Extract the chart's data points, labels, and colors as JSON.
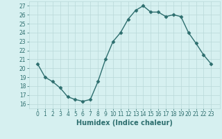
{
  "x": [
    0,
    1,
    2,
    3,
    4,
    5,
    6,
    7,
    8,
    9,
    10,
    11,
    12,
    13,
    14,
    15,
    16,
    17,
    18,
    19,
    20,
    21,
    22,
    23
  ],
  "y": [
    20.5,
    19.0,
    18.5,
    17.8,
    16.8,
    16.5,
    16.3,
    16.5,
    18.5,
    21.0,
    23.0,
    24.0,
    25.5,
    26.5,
    27.0,
    26.3,
    26.3,
    25.8,
    26.0,
    25.8,
    24.0,
    22.8,
    21.5,
    20.5
  ],
  "line_color": "#2d6e6e",
  "marker": "D",
  "marker_size": 2.5,
  "bg_color": "#d6f0f0",
  "grid_color": "#b8d8d8",
  "xlabel": "Humidex (Indice chaleur)",
  "ylim": [
    15.5,
    27.5
  ],
  "yticks": [
    16,
    17,
    18,
    19,
    20,
    21,
    22,
    23,
    24,
    25,
    26,
    27
  ],
  "xticks": [
    0,
    1,
    2,
    3,
    4,
    5,
    6,
    7,
    8,
    9,
    10,
    11,
    12,
    13,
    14,
    15,
    16,
    17,
    18,
    19,
    20,
    21,
    22,
    23
  ],
  "tick_fontsize": 5.5,
  "xlabel_fontsize": 7.0,
  "line_width": 1.0
}
